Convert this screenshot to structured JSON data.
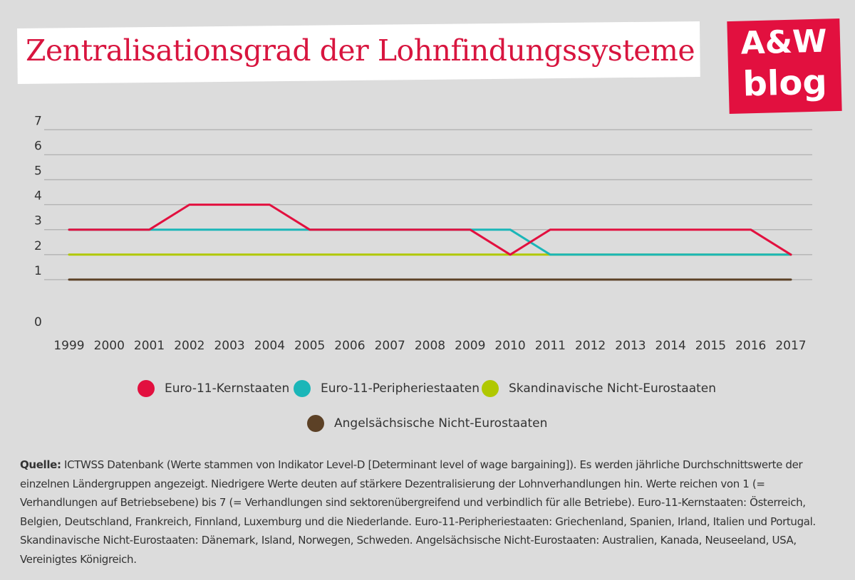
{
  "header": {
    "title": "Zentralisationsgrad der Lohnfindungssysteme",
    "logo_line1": "A&W",
    "logo_line2": "blog"
  },
  "colors": {
    "background": "#dcdcdc",
    "grid": "#b3b3b3",
    "axis_text": "#333333",
    "title": "#d8153f",
    "logo_bg": "#e2103f"
  },
  "chart_data": {
    "type": "line",
    "title": "Zentralisationsgrad der Lohnfindungssysteme",
    "xlabel": "",
    "ylabel": "",
    "ylim": [
      0,
      7
    ],
    "yticks": [
      "0",
      "1",
      "2",
      "3",
      "4",
      "5",
      "6",
      "7"
    ],
    "categories": [
      "1999",
      "2000",
      "2001",
      "2002",
      "2003",
      "2004",
      "2005",
      "2006",
      "2007",
      "2008",
      "2009",
      "2010",
      "2011",
      "2012",
      "2013",
      "2014",
      "2015",
      "2016",
      "2017"
    ],
    "grid": true,
    "legend_position": "bottom",
    "series": [
      {
        "name": "Euro-11-Kernstaaten",
        "color": "#e2103f",
        "values": [
          3,
          3,
          3,
          4,
          4,
          4,
          3,
          3,
          3,
          3,
          3,
          2,
          3,
          3,
          3,
          3,
          3,
          3,
          2
        ]
      },
      {
        "name": "Euro-11-Peripheriestaaten",
        "color": "#1bb6b8",
        "values": [
          3,
          3,
          3,
          3,
          3,
          3,
          3,
          3,
          3,
          3,
          3,
          3,
          2,
          2,
          2,
          2,
          2,
          2,
          2
        ]
      },
      {
        "name": "Skandinavische Nicht-Eurostaaten",
        "color": "#b0c800",
        "values": [
          2,
          2,
          2,
          2,
          2,
          2,
          2,
          2,
          2,
          2,
          2,
          2,
          2,
          2,
          2,
          2,
          2,
          2,
          2
        ]
      },
      {
        "name": "Angelsächsische Nicht-Eurostaaten",
        "color": "#5c4126",
        "values": [
          1,
          1,
          1,
          1,
          1,
          1,
          1,
          1,
          1,
          1,
          1,
          1,
          1,
          1,
          1,
          1,
          1,
          1,
          1
        ]
      }
    ]
  },
  "source": {
    "label": "Quelle:",
    "text": " ICTWSS Datenbank (Werte stammen von Indikator Level-D [Determinant level of wage bargaining]). Es werden jährliche Durchschnittswerte der einzelnen Ländergruppen angezeigt. Niedrigere Werte deuten auf stärkere Dezentralisierung der Lohnverhandlungen hin. Werte reichen von 1 (= Verhandlungen auf Betriebsebene) bis 7 (= Verhandlungen sind sektorenübergreifend und verbindlich für alle Betriebe). Euro-11-Kernstaaten: Österreich, Belgien, Deutschland, Frankreich, Finnland, Luxemburg und die Niederlande. Euro-11-Peripheriestaaten: Griechenland, Spanien, Irland, Italien und Portugal. Skandinavische Nicht-Eurostaaten: Dänemark, Island, Norwegen, Schweden. Angelsächsische Nicht-Eurostaaten: Australien, Kanada, Neuseeland, USA, Vereinigtes Königreich."
  }
}
